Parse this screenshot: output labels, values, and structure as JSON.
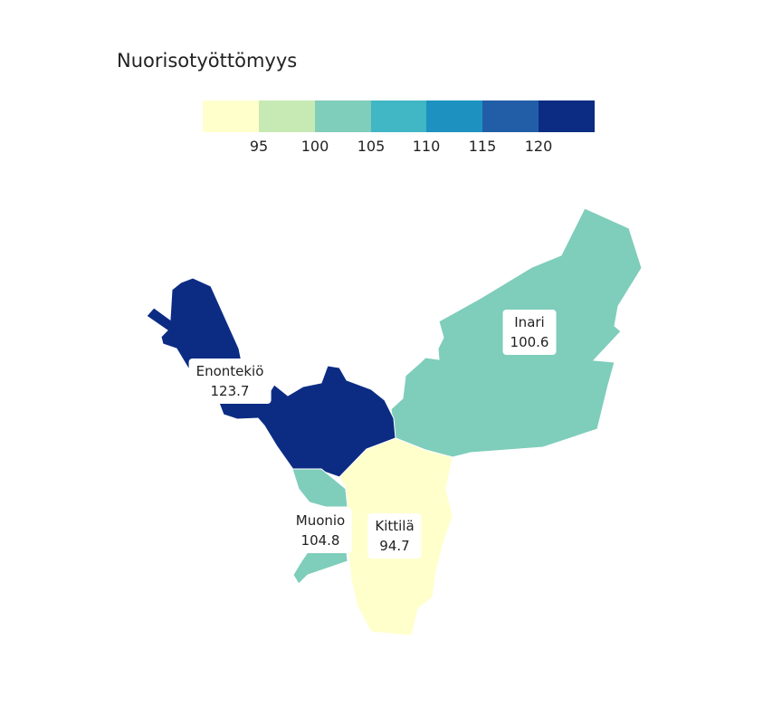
{
  "title": "Nuorisotyöttömyys",
  "legend": {
    "colors": [
      "#ffffcc",
      "#c7e9b4",
      "#7fcdbb",
      "#41b6c4",
      "#1d91c0",
      "#225ea8",
      "#0c2c84"
    ],
    "ticks": [
      "95",
      "100",
      "105",
      "110",
      "115",
      "120"
    ]
  },
  "regions": [
    {
      "name": "Enontekiö",
      "value": "123.7",
      "color": "#0c2c84"
    },
    {
      "name": "Inari",
      "value": "100.6",
      "color": "#7fcdbb"
    },
    {
      "name": "Muonio",
      "value": "104.8",
      "color": "#7fcdbb"
    },
    {
      "name": "Kittilä",
      "value": "94.7",
      "color": "#ffffcc"
    }
  ]
}
